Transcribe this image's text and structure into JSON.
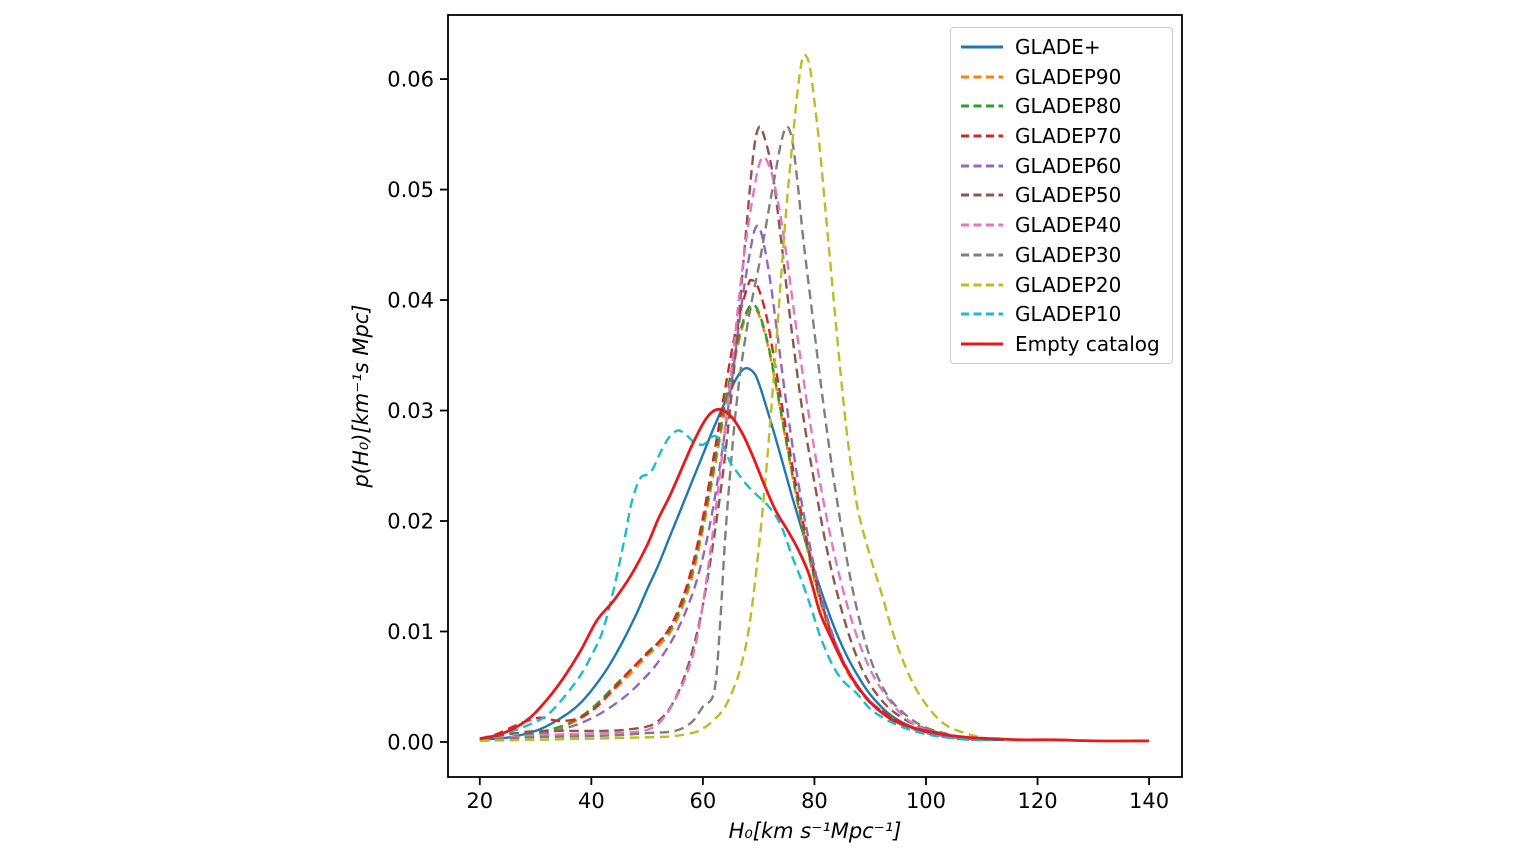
{
  "figure": {
    "background": "#ffffff",
    "axes_color": "#000000"
  },
  "chart_data": {
    "type": "line",
    "title": "",
    "xlabel": "H₀[km s⁻¹Mpc⁻¹]",
    "ylabel": "p(H₀)[km⁻¹s Mpc]",
    "xlim": [
      14.3,
      145.9
    ],
    "ylim": [
      -0.00317,
      0.0658
    ],
    "grid": false,
    "legend_position": "upper right",
    "x_ticks": [
      {
        "label": "20",
        "value": 20
      },
      {
        "label": "40",
        "value": 40
      },
      {
        "label": "60",
        "value": 60
      },
      {
        "label": "80",
        "value": 80
      },
      {
        "label": "100",
        "value": 100
      },
      {
        "label": "120",
        "value": 120
      },
      {
        "label": "140",
        "value": 140
      }
    ],
    "y_ticks": [
      {
        "label": "0.00",
        "value": 0.0
      },
      {
        "label": "0.01",
        "value": 0.01
      },
      {
        "label": "0.02",
        "value": 0.02
      },
      {
        "label": "0.03",
        "value": 0.03
      },
      {
        "label": "0.04",
        "value": 0.04
      },
      {
        "label": "0.05",
        "value": 0.05
      },
      {
        "label": "0.06",
        "value": 0.06
      }
    ],
    "series": [
      {
        "name": "GLADE+",
        "color": "#1f77b4",
        "style": "solid",
        "width": 2.4,
        "x": [
          20,
          25,
          30,
          34,
          38,
          42,
          45,
          48,
          50,
          52,
          54,
          56,
          58,
          60,
          62,
          64,
          66,
          67.5,
          69,
          70,
          72,
          74,
          76,
          78,
          80,
          82,
          84,
          86,
          88,
          90,
          93,
          96,
          100,
          105,
          110,
          114
        ],
        "y": [
          0.0002,
          0.0004,
          0.001,
          0.002,
          0.0035,
          0.006,
          0.0085,
          0.0115,
          0.0138,
          0.016,
          0.0185,
          0.021,
          0.0235,
          0.026,
          0.0285,
          0.0308,
          0.0329,
          0.0338,
          0.0335,
          0.0325,
          0.0293,
          0.0258,
          0.0222,
          0.0188,
          0.0155,
          0.0125,
          0.0098,
          0.0076,
          0.0058,
          0.0043,
          0.0027,
          0.0017,
          0.0009,
          0.0004,
          0.0002,
          0.0002
        ]
      },
      {
        "name": "GLADEP90",
        "color": "#ff7f0e",
        "style": "dashed",
        "width": 2.4,
        "x": [
          20,
          26,
          31,
          36,
          40,
          44,
          47,
          50,
          52,
          54,
          56,
          58,
          60,
          62,
          64,
          66,
          67.5,
          68.8,
          70,
          71.5,
          73,
          75,
          77,
          79,
          81,
          83,
          85,
          87,
          89,
          91,
          94,
          97,
          100,
          104,
          108,
          112
        ],
        "y": [
          0.0002,
          0.0004,
          0.0008,
          0.0016,
          0.0028,
          0.0047,
          0.0062,
          0.0078,
          0.0087,
          0.0098,
          0.0118,
          0.0148,
          0.0192,
          0.0245,
          0.0302,
          0.0353,
          0.0382,
          0.0393,
          0.0387,
          0.0362,
          0.0325,
          0.0269,
          0.0216,
          0.0168,
          0.0128,
          0.0096,
          0.0072,
          0.0054,
          0.0041,
          0.0031,
          0.0021,
          0.0014,
          0.0009,
          0.0005,
          0.0003,
          0.0002
        ]
      },
      {
        "name": "GLADEP80",
        "color": "#2ca02c",
        "style": "dashed",
        "width": 2.4,
        "x": [
          20,
          26,
          31,
          36,
          40,
          44,
          46,
          48,
          50,
          52,
          54,
          56,
          58,
          60,
          62,
          64,
          66,
          67.5,
          68.8,
          70,
          71.5,
          73,
          75,
          77,
          79,
          81,
          83,
          85,
          87,
          89,
          91,
          94,
          97,
          100,
          104,
          108,
          112
        ],
        "y": [
          0.0002,
          0.0004,
          0.0009,
          0.0017,
          0.003,
          0.005,
          0.006,
          0.007,
          0.0081,
          0.009,
          0.0101,
          0.0122,
          0.0153,
          0.0197,
          0.025,
          0.0307,
          0.0357,
          0.0385,
          0.0396,
          0.0389,
          0.0364,
          0.0327,
          0.0271,
          0.0218,
          0.017,
          0.013,
          0.0098,
          0.0074,
          0.0055,
          0.0042,
          0.0032,
          0.0022,
          0.0014,
          0.0009,
          0.0005,
          0.0003,
          0.0002
        ]
      },
      {
        "name": "GLADEP70",
        "color": "#d62728",
        "style": "dashed",
        "width": 2.4,
        "x": [
          20,
          23,
          26,
          29,
          31,
          33,
          35,
          38,
          41,
          44,
          47,
          50,
          52,
          54,
          56,
          58,
          60,
          62,
          64,
          66,
          68,
          68.8,
          70,
          71.5,
          73,
          75,
          77,
          79,
          81,
          83,
          85,
          87,
          89,
          91,
          94,
          97,
          100,
          104,
          108,
          112
        ],
        "y": [
          0.0003,
          0.0007,
          0.0014,
          0.002,
          0.0022,
          0.002,
          0.0019,
          0.0022,
          0.0032,
          0.0048,
          0.0065,
          0.008,
          0.009,
          0.0103,
          0.0125,
          0.0157,
          0.0203,
          0.026,
          0.032,
          0.0375,
          0.0412,
          0.0418,
          0.041,
          0.0383,
          0.034,
          0.028,
          0.0224,
          0.0174,
          0.0132,
          0.0099,
          0.0075,
          0.0056,
          0.0042,
          0.0032,
          0.0022,
          0.0014,
          0.0009,
          0.0005,
          0.0003,
          0.0002
        ]
      },
      {
        "name": "GLADEP60",
        "color": "#9467bd",
        "style": "dashed",
        "width": 2.4,
        "x": [
          20,
          26,
          32,
          37,
          41,
          45,
          48,
          51,
          53,
          55,
          57,
          59,
          61,
          63,
          65,
          67,
          68.5,
          69.5,
          70.5,
          72,
          73.5,
          75,
          77,
          79,
          81,
          83,
          85,
          87,
          89,
          91,
          94,
          97,
          100,
          104,
          108,
          112
        ],
        "y": [
          0.0002,
          0.0003,
          0.0008,
          0.0015,
          0.0024,
          0.0037,
          0.005,
          0.0066,
          0.008,
          0.0097,
          0.0119,
          0.0148,
          0.019,
          0.0248,
          0.032,
          0.0398,
          0.0445,
          0.0466,
          0.046,
          0.042,
          0.0363,
          0.0305,
          0.0238,
          0.0182,
          0.0136,
          0.0101,
          0.0075,
          0.0055,
          0.0041,
          0.0031,
          0.002,
          0.0013,
          0.0008,
          0.0004,
          0.0002,
          0.0002
        ]
      },
      {
        "name": "GLADEP50",
        "color": "#8c564b",
        "style": "dashed",
        "width": 2.4,
        "x": [
          20,
          24,
          28,
          31,
          34,
          38,
          42,
          46,
          50,
          52,
          54,
          56,
          58,
          60,
          62,
          64,
          66,
          67.5,
          69,
          70,
          71,
          72.5,
          74,
          75.5,
          77,
          78.5,
          80,
          82,
          84,
          86,
          88,
          90,
          92,
          94,
          97,
          100,
          104,
          108,
          112
        ],
        "y": [
          0.0003,
          0.0006,
          0.0009,
          0.001,
          0.001,
          0.001,
          0.001,
          0.0011,
          0.0014,
          0.0019,
          0.003,
          0.005,
          0.008,
          0.0124,
          0.0185,
          0.026,
          0.036,
          0.0448,
          0.053,
          0.0556,
          0.0548,
          0.0515,
          0.0455,
          0.039,
          0.033,
          0.0278,
          0.0235,
          0.018,
          0.0136,
          0.01,
          0.0072,
          0.0052,
          0.0038,
          0.0028,
          0.0018,
          0.0012,
          0.0006,
          0.0003,
          0.0002
        ]
      },
      {
        "name": "GLADEP40",
        "color": "#e377c2",
        "style": "dashed",
        "width": 2.4,
        "x": [
          20,
          25,
          30,
          36,
          42,
          48,
          51,
          53,
          55,
          57,
          59,
          61,
          63,
          65,
          67,
          69,
          70.5,
          72,
          73.5,
          75,
          77,
          79,
          81,
          83,
          85,
          87,
          89,
          91,
          94,
          97,
          100,
          104,
          108,
          112
        ],
        "y": [
          0.0002,
          0.0004,
          0.0006,
          0.0007,
          0.0008,
          0.0009,
          0.0013,
          0.0022,
          0.0038,
          0.006,
          0.0095,
          0.016,
          0.024,
          0.033,
          0.0425,
          0.0495,
          0.0528,
          0.052,
          0.0488,
          0.044,
          0.0365,
          0.0296,
          0.0235,
          0.0183,
          0.014,
          0.0105,
          0.0077,
          0.0056,
          0.0034,
          0.0019,
          0.0011,
          0.0005,
          0.0003,
          0.0002
        ]
      },
      {
        "name": "GLADEP30",
        "color": "#7f7f7f",
        "style": "dashed",
        "width": 2.4,
        "x": [
          20,
          28,
          36,
          44,
          50,
          55,
          58,
          60,
          62,
          63,
          64,
          65,
          66,
          67,
          68,
          69,
          70,
          71,
          72,
          73,
          74,
          75,
          76,
          77,
          78,
          79.5,
          81,
          82.5,
          84,
          86,
          88,
          90,
          92,
          94,
          97,
          100,
          104,
          108,
          112
        ],
        "y": [
          0.0002,
          0.0004,
          0.0005,
          0.0006,
          0.0008,
          0.001,
          0.0018,
          0.0032,
          0.0045,
          0.01,
          0.0185,
          0.025,
          0.0305,
          0.0345,
          0.0378,
          0.0405,
          0.043,
          0.0458,
          0.0487,
          0.0515,
          0.0542,
          0.0557,
          0.0545,
          0.0505,
          0.0455,
          0.0392,
          0.033,
          0.0272,
          0.022,
          0.016,
          0.0112,
          0.0076,
          0.0052,
          0.0036,
          0.0022,
          0.0013,
          0.0007,
          0.0003,
          0.0002
        ]
      },
      {
        "name": "GLADEP20",
        "color": "#bcbd22",
        "style": "dashed",
        "width": 2.4,
        "x": [
          20,
          30,
          40,
          48,
          54,
          58,
          60,
          62,
          64,
          66,
          67,
          68,
          69,
          70,
          71,
          72,
          73,
          74,
          75,
          76,
          77,
          77.8,
          78.5,
          79.2,
          80,
          81,
          82,
          83,
          84,
          85,
          86,
          87,
          88,
          90,
          92,
          94,
          96,
          98,
          100,
          102,
          104,
          107,
          110,
          113
        ],
        "y": [
          0.0001,
          0.0002,
          0.0003,
          0.0004,
          0.0005,
          0.0008,
          0.0012,
          0.002,
          0.0032,
          0.0055,
          0.0072,
          0.0095,
          0.013,
          0.0175,
          0.0225,
          0.0285,
          0.035,
          0.042,
          0.0485,
          0.054,
          0.059,
          0.0618,
          0.0621,
          0.061,
          0.058,
          0.0535,
          0.048,
          0.0425,
          0.037,
          0.0318,
          0.0272,
          0.0235,
          0.0205,
          0.0168,
          0.0135,
          0.01,
          0.0072,
          0.005,
          0.0034,
          0.0022,
          0.0014,
          0.0008,
          0.0004,
          0.0002
        ]
      },
      {
        "name": "GLADEP10",
        "color": "#17becf",
        "style": "dashed",
        "width": 2.4,
        "x": [
          20,
          23,
          26,
          29,
          32,
          35,
          38,
          40,
          42,
          44,
          46,
          47,
          48,
          49,
          50,
          51,
          52,
          53,
          54,
          55.5,
          57,
          58.5,
          60,
          61,
          62,
          63,
          64,
          65,
          66,
          68,
          70,
          72,
          74,
          76,
          78,
          80,
          81,
          83,
          85,
          87.6,
          90,
          93,
          96,
          100,
          104,
          108,
          112
        ],
        "y": [
          0.0003,
          0.0006,
          0.001,
          0.0016,
          0.0024,
          0.004,
          0.006,
          0.0078,
          0.01,
          0.0138,
          0.0185,
          0.0212,
          0.023,
          0.024,
          0.0242,
          0.0247,
          0.0258,
          0.0268,
          0.0276,
          0.0282,
          0.0278,
          0.0271,
          0.0269,
          0.0273,
          0.0277,
          0.0274,
          0.0264,
          0.0252,
          0.0245,
          0.0232,
          0.0222,
          0.0212,
          0.0196,
          0.0168,
          0.0142,
          0.0112,
          0.0096,
          0.0072,
          0.0056,
          0.0044,
          0.003,
          0.002,
          0.0013,
          0.0007,
          0.0004,
          0.0002,
          0.0002
        ]
      },
      {
        "name": "Empty catalog",
        "color": "#e8191c",
        "style": "solid",
        "width": 2.8,
        "x": [
          20,
          23,
          26,
          29,
          32,
          35,
          38,
          41,
          44,
          47,
          50,
          52,
          54,
          56,
          58,
          60,
          61.5,
          63,
          65,
          67,
          69,
          71,
          73,
          75,
          77,
          79,
          81,
          83,
          85,
          87,
          89,
          91,
          94,
          97,
          100,
          104,
          108,
          112,
          117,
          123,
          130,
          140
        ],
        "y": [
          0.0003,
          0.0006,
          0.0012,
          0.0022,
          0.0038,
          0.0058,
          0.0082,
          0.011,
          0.0128,
          0.015,
          0.0178,
          0.0202,
          0.0222,
          0.0245,
          0.0268,
          0.0288,
          0.0298,
          0.0301,
          0.0295,
          0.028,
          0.0258,
          0.0233,
          0.021,
          0.0193,
          0.0175,
          0.0152,
          0.0117,
          0.0094,
          0.0073,
          0.0056,
          0.0042,
          0.0031,
          0.002,
          0.0014,
          0.001,
          0.0006,
          0.0004,
          0.0003,
          0.0002,
          0.0002,
          0.0001,
          0.0001
        ]
      }
    ]
  }
}
